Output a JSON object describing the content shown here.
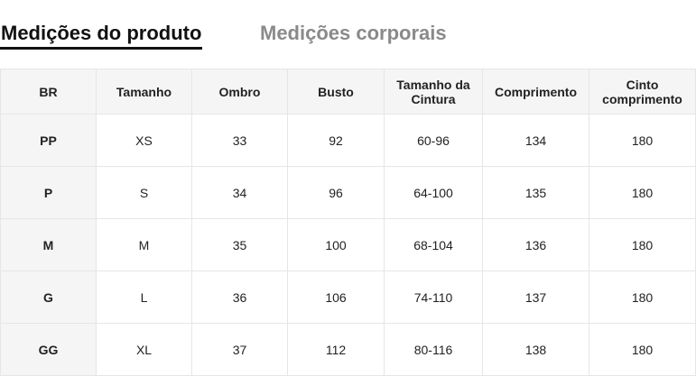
{
  "tabs": [
    {
      "label": "Medições do produto",
      "active": true
    },
    {
      "label": "Medições corporais",
      "active": false
    }
  ],
  "table": {
    "headers": [
      "BR",
      "Tamanho",
      "Ombro",
      "Busto",
      "Tamanho da Cintura",
      "Comprimento",
      "Cinto comprimento"
    ],
    "rows": [
      [
        "PP",
        "XS",
        "33",
        "92",
        "60-96",
        "134",
        "180"
      ],
      [
        "P",
        "S",
        "34",
        "96",
        "64-100",
        "135",
        "180"
      ],
      [
        "M",
        "M",
        "35",
        "100",
        "68-104",
        "136",
        "180"
      ],
      [
        "G",
        "L",
        "36",
        "106",
        "74-110",
        "137",
        "180"
      ],
      [
        "GG",
        "XL",
        "37",
        "112",
        "80-116",
        "138",
        "180"
      ]
    ]
  }
}
